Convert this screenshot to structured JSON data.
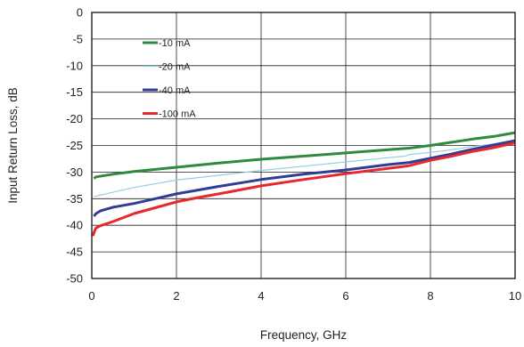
{
  "chart_data": {
    "type": "line",
    "xlabel": "Frequency, GHz",
    "ylabel": "Input Return Loss, dB",
    "xlim": [
      0,
      10
    ],
    "ylim": [
      -50,
      0
    ],
    "xticks": [
      0,
      2,
      4,
      6,
      8,
      10
    ],
    "yticks": [
      0,
      -5,
      -10,
      -15,
      -20,
      -25,
      -30,
      -35,
      -40,
      -45,
      -50
    ],
    "grid": true,
    "legend_placement": "top-left",
    "series": [
      {
        "name": "-10 mA",
        "color": "#2e8b3e",
        "x": [
          0.05,
          0.1,
          0.5,
          1,
          2,
          3,
          4,
          5,
          6,
          7,
          7.5,
          8,
          8.5,
          9,
          9.5,
          10
        ],
        "y": [
          -31.2,
          -30.9,
          -30.4,
          -29.9,
          -29.1,
          -28.3,
          -27.6,
          -27.0,
          -26.4,
          -25.8,
          -25.5,
          -25.0,
          -24.4,
          -23.8,
          -23.3,
          -22.6
        ]
      },
      {
        "name": "-20 mA",
        "color": "#8fd0e0",
        "x": [
          0.05,
          0.5,
          1,
          2,
          3,
          4,
          5,
          6,
          7,
          7.4,
          7.5,
          8,
          8.5,
          9,
          9.5,
          10
        ],
        "y": [
          -34.6,
          -33.8,
          -32.9,
          -31.5,
          -30.6,
          -29.7,
          -28.9,
          -28.1,
          -27.3,
          -27.0,
          -26.7,
          -26.3,
          -25.8,
          -25.2,
          -24.7,
          -24.0
        ]
      },
      {
        "name": "-40 mA",
        "color": "#2f3d96",
        "x": [
          0.05,
          0.1,
          0.2,
          0.5,
          1,
          1.5,
          2,
          3,
          4,
          5,
          6,
          7,
          7.5,
          8,
          8.5,
          9,
          9.5,
          10
        ],
        "y": [
          -38.3,
          -37.8,
          -37.3,
          -36.6,
          -35.9,
          -35.0,
          -34.1,
          -32.7,
          -31.4,
          -30.4,
          -29.6,
          -28.6,
          -28.2,
          -27.4,
          -26.6,
          -25.7,
          -24.9,
          -24.1
        ]
      },
      {
        "name": "-100 mA",
        "color": "#e8282f",
        "x": [
          0.03,
          0.06,
          0.1,
          0.15,
          0.2,
          0.5,
          1,
          1.5,
          2,
          2.5,
          3,
          4,
          5,
          6,
          7,
          7.5,
          8,
          8.5,
          9,
          9.5,
          10
        ],
        "y": [
          -42.0,
          -41.2,
          -40.5,
          -40.3,
          -40.1,
          -39.3,
          -37.8,
          -36.7,
          -35.6,
          -34.8,
          -34.1,
          -32.6,
          -31.4,
          -30.3,
          -29.3,
          -28.8,
          -27.8,
          -27.0,
          -26.1,
          -25.4,
          -24.5
        ]
      }
    ]
  }
}
